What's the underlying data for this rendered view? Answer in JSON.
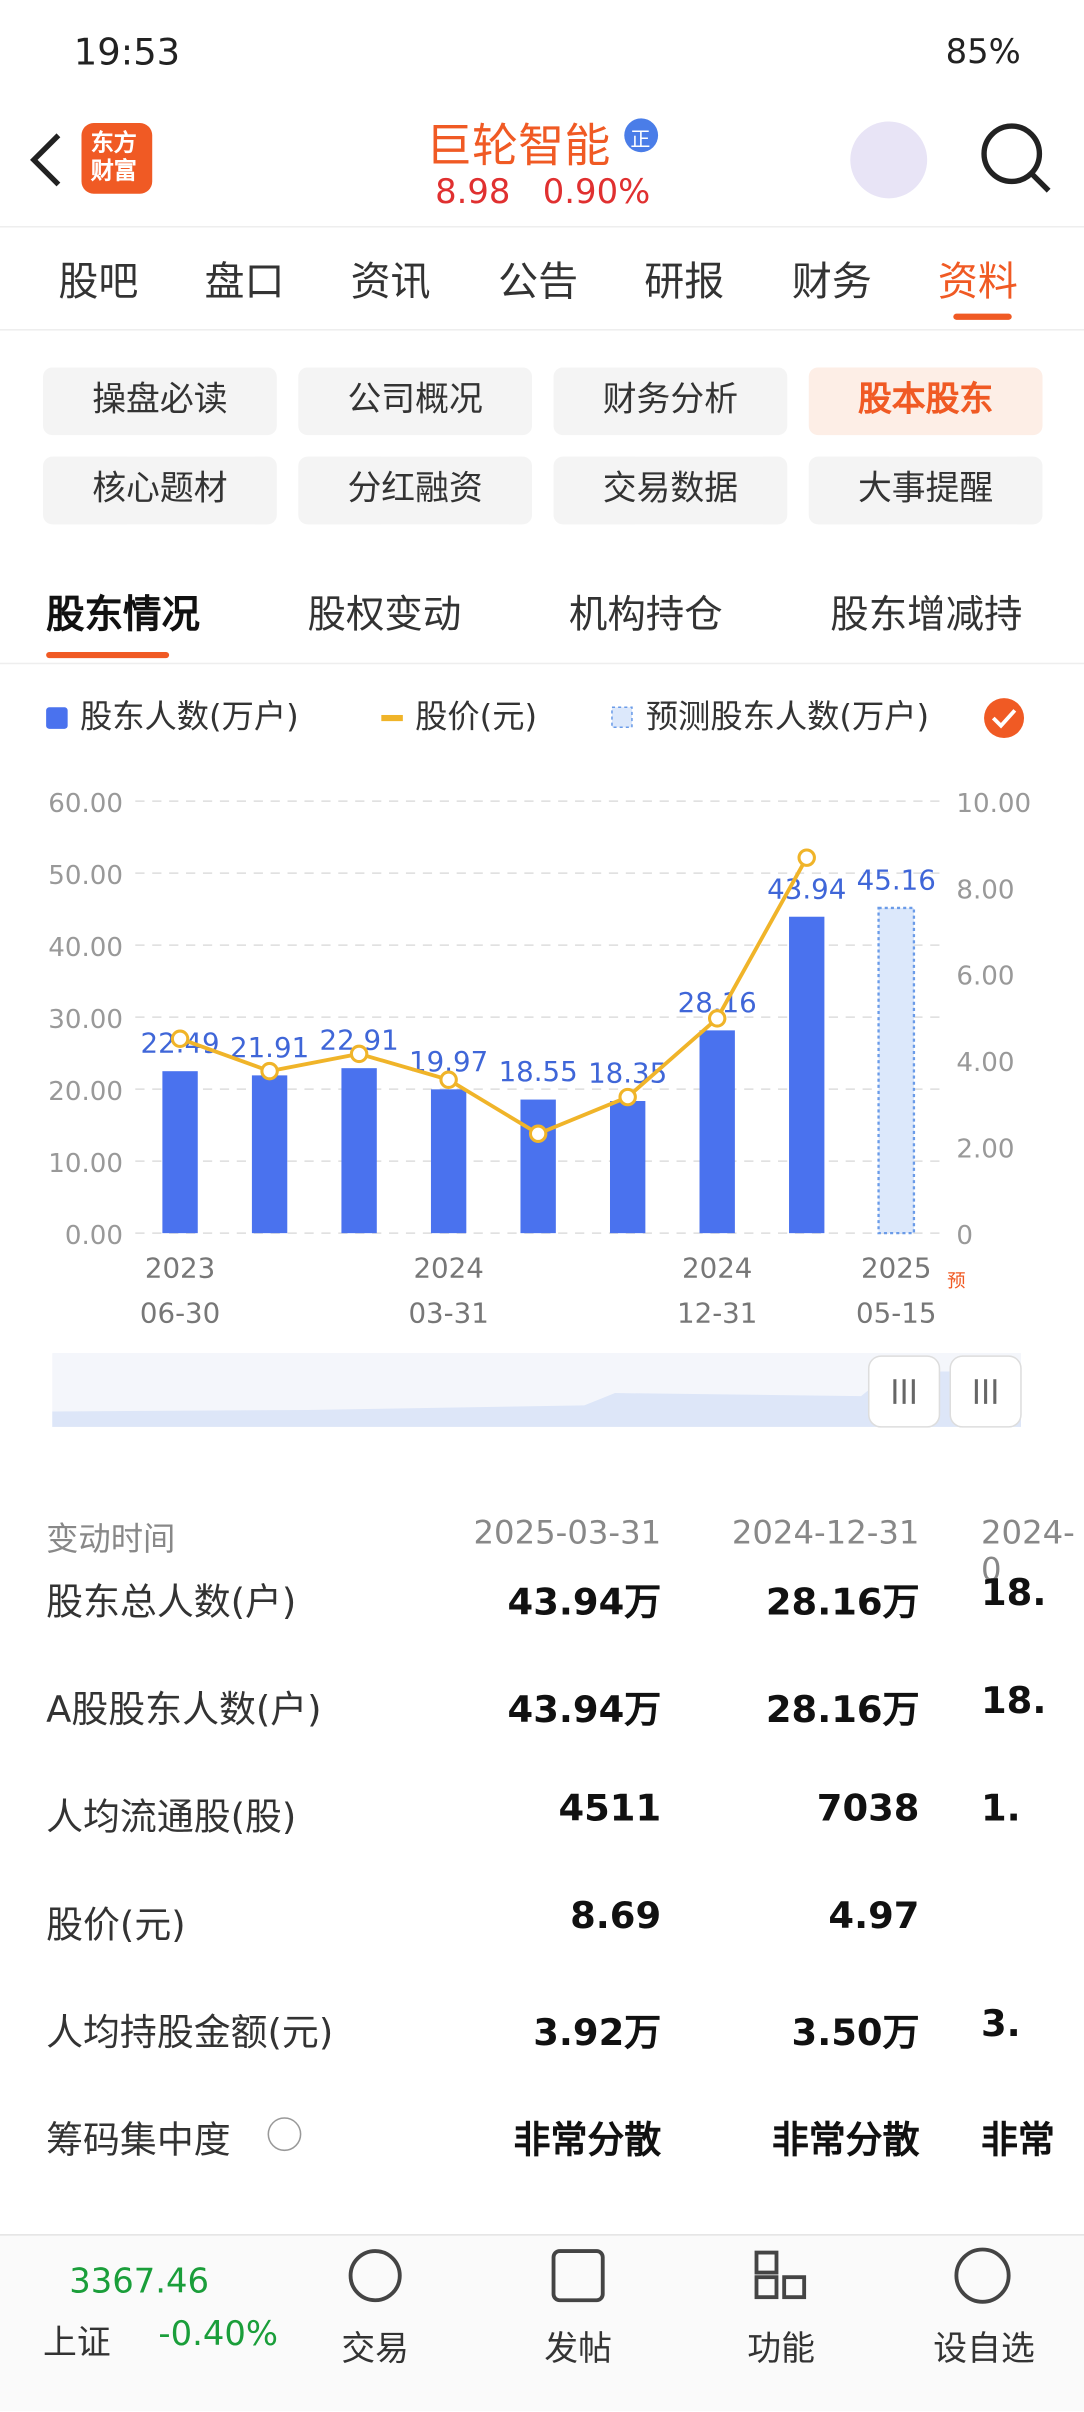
{
  "status_bar": {
    "time": "19:53",
    "battery": "85%"
  },
  "header": {
    "logo": [
      "东方",
      "财富"
    ],
    "title": "巨轮智能",
    "badge": "正",
    "price": "8.98",
    "change": "0.90%"
  },
  "tabs": [
    "股吧",
    "盘口",
    "资讯",
    "公告",
    "研报",
    "财务",
    "资料"
  ],
  "chips": [
    "操盘必读",
    "公司概况",
    "财务分析",
    "股本股东",
    "核心题材",
    "分红融资",
    "交易数据",
    "大事提醒"
  ],
  "subtabs": [
    "股东情况",
    "股权变动",
    "机构持仓",
    "股东增减持"
  ],
  "chart_data": {
    "type": "bar",
    "categories": [
      [
        "2023",
        "06-30"
      ],
      null,
      null,
      [
        "2024",
        "03-31"
      ],
      null,
      null,
      [
        "2024",
        "12-31"
      ],
      null,
      [
        "2025",
        "05-15"
      ]
    ],
    "series": [
      {
        "name": "股东人数(万户)",
        "color": "#4a72ee",
        "values": [
          22.49,
          21.91,
          22.91,
          19.97,
          18.55,
          18.35,
          28.16,
          43.94,
          null
        ]
      },
      {
        "name": "股价(元)",
        "color": "#f0b429",
        "axis": "y2",
        "type": "line",
        "values": [
          4.5,
          3.75,
          4.15,
          3.55,
          2.3,
          3.15,
          4.97,
          8.69,
          null
        ]
      },
      {
        "name": "预测股东人数(万户)",
        "color": "#6a9be8",
        "values": [
          null,
          null,
          null,
          null,
          null,
          null,
          null,
          null,
          45.16
        ]
      }
    ],
    "ylim": [
      0,
      60
    ],
    "yticks": [
      {
        "value": 0,
        "label": "0.00"
      },
      {
        "value": 10,
        "label": "10.00"
      },
      {
        "value": 20,
        "label": "20.00"
      },
      {
        "value": 30,
        "label": "30.00"
      },
      {
        "value": 40,
        "label": "40.00"
      },
      {
        "value": 50,
        "label": "50.00"
      },
      {
        "value": 60,
        "label": "60.00"
      }
    ],
    "y2lim": [
      0,
      10
    ],
    "y2ticks": [
      0,
      {
        "value": 2,
        "label": "2.00"
      },
      {
        "value": 4,
        "label": "4.00"
      },
      {
        "value": 6,
        "label": "6.00"
      },
      {
        "value": 8,
        "label": "8.00"
      },
      {
        "value": 10,
        "label": "10.00"
      }
    ],
    "grid": true,
    "annotation": "预"
  },
  "table": {
    "header": [
      "变动时间",
      "2025-03-31",
      "2024-12-31",
      "2024-0"
    ],
    "rows": [
      [
        "股东总人数(户)",
        "43.94万",
        "28.16万",
        "18."
      ],
      [
        "A股股东人数(户)",
        "43.94万",
        "28.16万",
        "18."
      ],
      [
        "人均流通股(股)",
        "4511",
        "7038",
        "1."
      ],
      [
        "股价(元)",
        "8.69",
        "4.97"
      ],
      [
        "人均持股金额(元)",
        "3.92万",
        "3.50万",
        "3."
      ],
      [
        "筹码集中度",
        "非常分散",
        "非常分散",
        "非常"
      ]
    ]
  },
  "bottom_bar": {
    "index_value": "3367.46",
    "index_name": "上证",
    "index_change": "-0.40%",
    "buttons": [
      "交易",
      "发帖",
      "功能",
      "设自选"
    ]
  }
}
